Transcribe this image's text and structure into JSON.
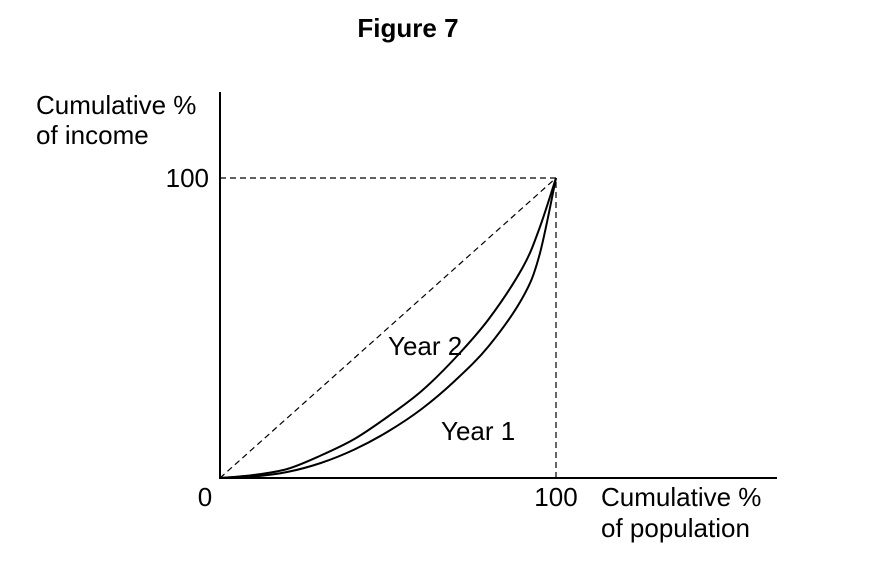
{
  "figure_title": "Figure 7",
  "chart_data": {
    "type": "line",
    "title": "Figure 7",
    "ylabel_lines": [
      "Cumulative %",
      "of income"
    ],
    "xlabel_lines": [
      "Cumulative %",
      "of population"
    ],
    "origin_label": "0",
    "x_tick_label": "100",
    "y_tick_label": "100",
    "xlim": [
      0,
      100
    ],
    "ylim": [
      0,
      100
    ],
    "grid": false,
    "reference_lines": [
      {
        "kind": "line-of-equality",
        "style": "dashed",
        "from": [
          0,
          0
        ],
        "to": [
          100,
          100
        ]
      },
      {
        "kind": "guide",
        "style": "dashed",
        "from": [
          0,
          100
        ],
        "to": [
          100,
          100
        ]
      },
      {
        "kind": "guide",
        "style": "dashed",
        "from": [
          100,
          0
        ],
        "to": [
          100,
          100
        ]
      }
    ],
    "series": [
      {
        "name": "Year 2",
        "x": [
          0,
          10,
          20,
          30,
          40,
          50,
          60,
          70,
          80,
          90,
          95,
          100
        ],
        "y": [
          0,
          1,
          3,
          7.5,
          13,
          20.5,
          29,
          40,
          53,
          70,
          83,
          100
        ]
      },
      {
        "name": "Year 1",
        "x": [
          0,
          10,
          20,
          30,
          40,
          50,
          60,
          70,
          80,
          90,
          95,
          100
        ],
        "y": [
          0,
          0.5,
          2,
          5,
          9.5,
          15.5,
          23,
          32.5,
          44,
          60,
          74,
          100
        ]
      }
    ]
  }
}
